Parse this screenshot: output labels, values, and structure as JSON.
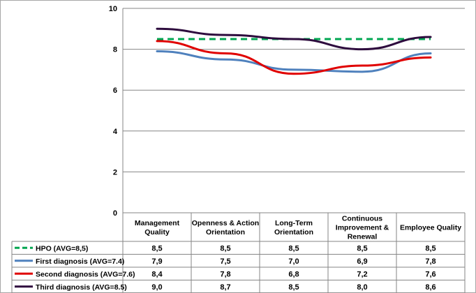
{
  "chart_data": {
    "type": "line",
    "title": "",
    "xlabel": "",
    "ylabel": "",
    "ylim": [
      0,
      10
    ],
    "yticks": [
      0,
      2,
      4,
      6,
      8,
      10
    ],
    "grid": true,
    "legend": "data-table",
    "categories": [
      [
        "Management",
        "Quality"
      ],
      [
        "Openness & Action",
        "Orientation"
      ],
      [
        "Long-Term",
        "Orientation"
      ],
      [
        "Continuous",
        "Improvement &",
        "Renewal"
      ],
      [
        "Employee Quality"
      ]
    ],
    "series": [
      {
        "name": "HPO (AVG=8,5)",
        "color": "#00a651",
        "dash": "dashed",
        "values": [
          8.5,
          8.5,
          8.5,
          8.5,
          8.5
        ],
        "labels": [
          "8,5",
          "8,5",
          "8,5",
          "8,5",
          "8,5"
        ]
      },
      {
        "name": "First diagnosis (AVG=7.4)",
        "color": "#4f81bd",
        "dash": "solid",
        "values": [
          7.9,
          7.5,
          7.0,
          6.9,
          7.8
        ],
        "labels": [
          "7,9",
          "7,5",
          "7,0",
          "6,9",
          "7,8"
        ]
      },
      {
        "name": "Second diagnosis (AVG=7.6)",
        "color": "#e00000",
        "dash": "solid",
        "values": [
          8.4,
          7.8,
          6.8,
          7.2,
          7.6
        ],
        "labels": [
          "8,4",
          "7,8",
          "6,8",
          "7,2",
          "7,6"
        ]
      },
      {
        "name": "Third diagnosis (AVG=8.5)",
        "color": "#2e0c3e",
        "dash": "solid",
        "values": [
          9.0,
          8.7,
          8.5,
          8.0,
          8.6
        ],
        "labels": [
          "9,0",
          "8,7",
          "8,5",
          "8,0",
          "8,6"
        ]
      }
    ]
  }
}
